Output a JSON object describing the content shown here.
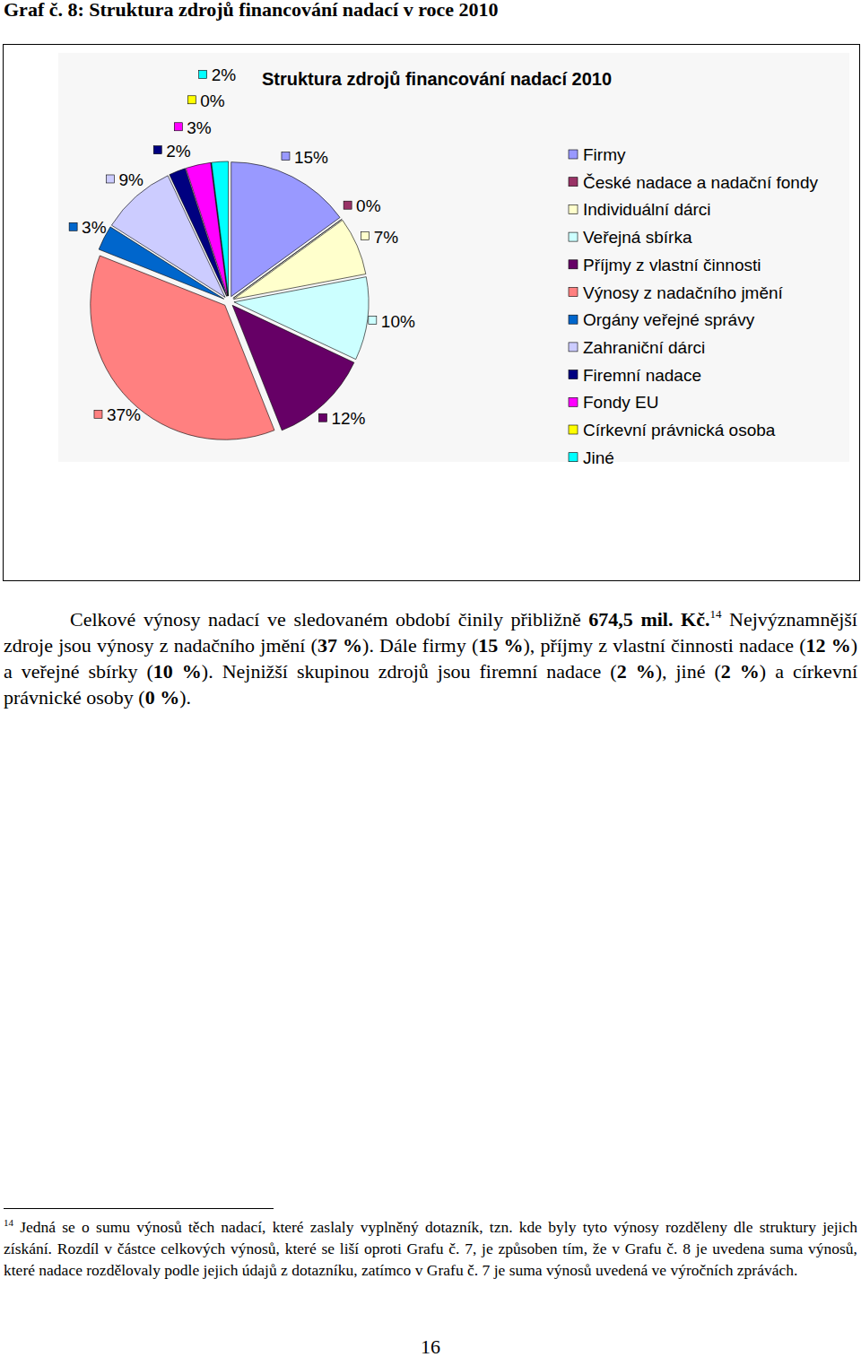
{
  "heading": "Graf č. 8: Struktura zdrojů financování nadací v roce 2010",
  "chart_data": {
    "type": "pie",
    "title": "Struktura zdrojů financování nadací 2010",
    "categories": [
      "Firmy",
      "České nadace a nadační fondy",
      "Individuální dárci",
      "Veřejná sbírka",
      "Příjmy z vlastní činnosti",
      "Výnosy z nadačního jmění",
      "Orgány veřejné správy",
      "Zahraniční dárci",
      "Firemní nadace",
      "Fondy EU",
      "Církevní právnická osoba",
      "Jiné"
    ],
    "values": [
      15,
      0,
      7,
      10,
      12,
      37,
      3,
      9,
      2,
      3,
      0,
      2
    ],
    "value_labels": [
      "15%",
      "0%",
      "7%",
      "10%",
      "12%",
      "37%",
      "3%",
      "9%",
      "2%",
      "3%",
      "0%",
      "2%"
    ],
    "colors": [
      "#9999ff",
      "#993366",
      "#ffffcc",
      "#ccffff",
      "#660066",
      "#ff8080",
      "#0066cc",
      "#ccccff",
      "#000080",
      "#ff00ff",
      "#ffff00",
      "#00ffff"
    ],
    "data_labels": true,
    "legend": "right"
  },
  "paragraph": [
    {
      "text": "Celkové výnosy nadací ve sledovaném období činily přibližně "
    },
    {
      "text": "674,5 mil. Kč.",
      "bold": true
    },
    {
      "text": "14",
      "sup": true
    },
    {
      "text": " Nejvýznamnější zdroje jsou výnosy z nadačního jmění ("
    },
    {
      "text": "37 %",
      "bold": true
    },
    {
      "text": "). Dále firmy ("
    },
    {
      "text": "15 %",
      "bold": true
    },
    {
      "text": "), příjmy z vlastní činnosti nadace ("
    },
    {
      "text": "12 %",
      "bold": true
    },
    {
      "text": ") a veřejné sbírky ("
    },
    {
      "text": "10 %",
      "bold": true
    },
    {
      "text": "). Nejnižší skupinou zdrojů jsou firemní nadace ("
    },
    {
      "text": "2 %",
      "bold": true
    },
    {
      "text": "), jiné ("
    },
    {
      "text": "2 %",
      "bold": true
    },
    {
      "text": ") a církevní právnické osoby ("
    },
    {
      "text": "0 %",
      "bold": true
    },
    {
      "text": ")."
    }
  ],
  "footnote": {
    "mark": "14",
    "text": "Jedná se o sumu výnosů těch nadací, které zaslaly vyplněný dotazník, tzn. kde byly tyto výnosy rozděleny dle struktury jejich získání. Rozdíl v částce celkových výnosů, které se liší oproti Grafu č. 7, je způsoben tím, že v Grafu č. 8 je uvedena suma výnosů, které nadace rozdělovaly podle jejich údajů z dotazníku, zatímco v Grafu č. 7 je suma výnosů uvedená ve výročních zprávách."
  },
  "page_number": "16"
}
